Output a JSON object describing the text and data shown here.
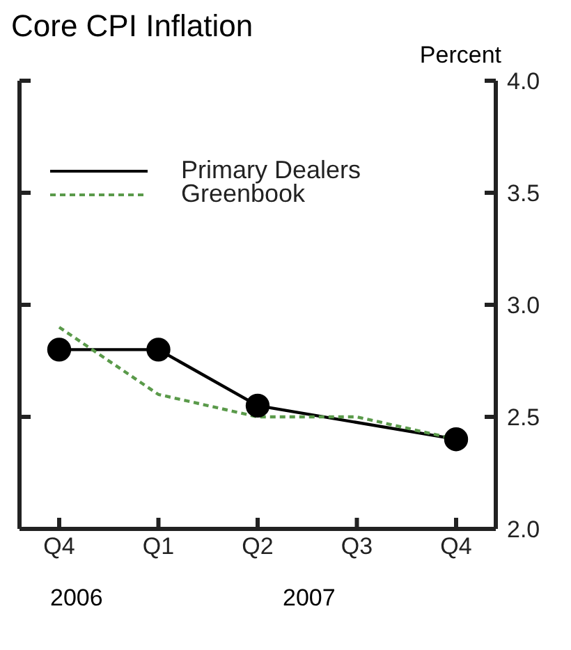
{
  "chart_data": {
    "type": "line",
    "title": "Core CPI Inflation",
    "ylabel": "Percent",
    "categories": [
      "Q4",
      "Q1",
      "Q2",
      "Q3",
      "Q4"
    ],
    "series": [
      {
        "name": "Primary Dealers",
        "color": "#000000",
        "values": [
          2.8,
          2.8,
          2.55,
          null,
          2.4
        ],
        "marker": "circle",
        "line_style": "solid"
      },
      {
        "name": "Greenbook",
        "color": "#5a9a4a",
        "values": [
          2.9,
          2.6,
          2.5,
          2.5,
          2.4
        ],
        "marker": "none",
        "line_style": "dashed"
      }
    ],
    "ylim": [
      2.0,
      4.0
    ],
    "yticks": [
      {
        "value": 2,
        "label": "2.0"
      },
      2.5,
      {
        "value": 3,
        "label": "3.0"
      },
      3.5,
      {
        "value": 4,
        "label": "4.0"
      }
    ],
    "grid": false,
    "legend": "top left",
    "annotations": [
      "2006",
      "2007"
    ]
  }
}
